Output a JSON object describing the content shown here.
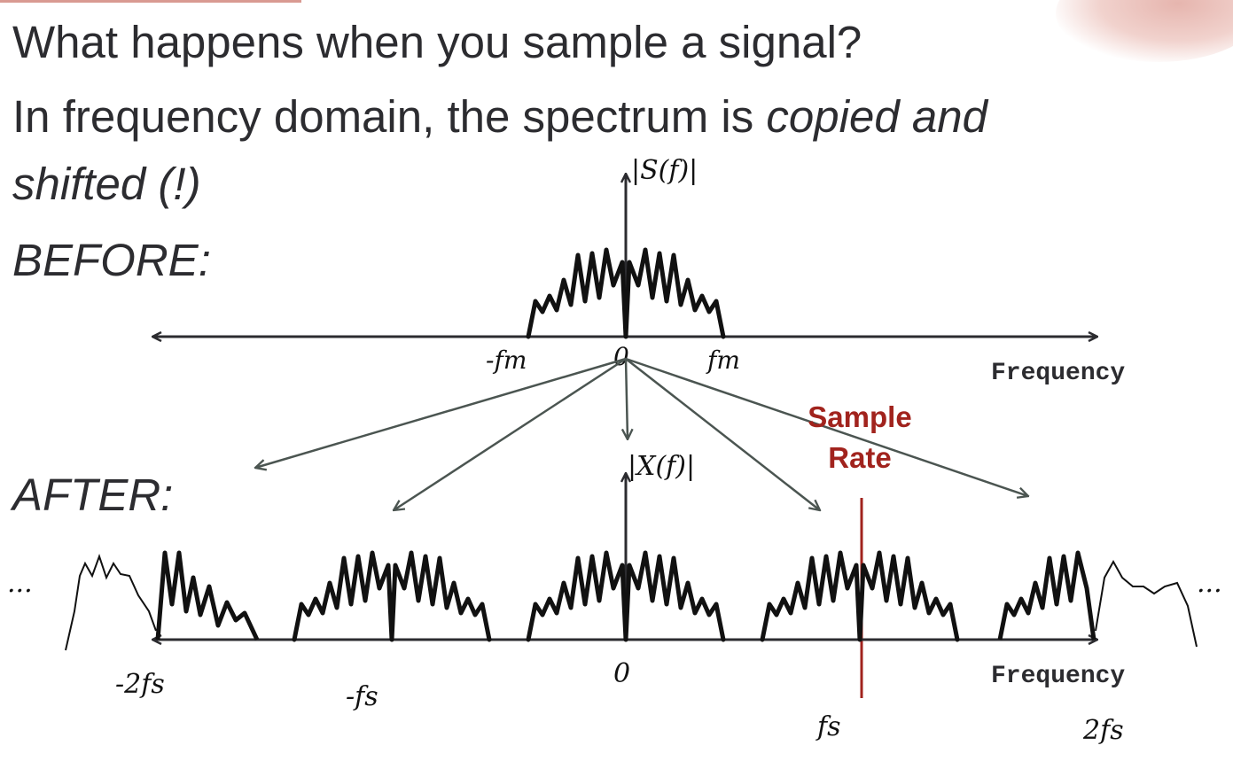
{
  "slide": {
    "title": "What happens when you sample a signal?",
    "line2_plain": "In frequency domain, the spectrum is ",
    "line2_emph": "copied and",
    "line3": "shifted (!)",
    "before_label": "BEFORE:",
    "after_label": "AFTER:"
  },
  "before_axis": {
    "spectrum_label": "|S(f)|",
    "axis_label": "Frequency",
    "ticks": [
      "-fm",
      "0",
      "fm"
    ]
  },
  "after_axis": {
    "spectrum_label": "|X(f)|",
    "axis_label": "Frequency",
    "ticks": [
      "-2fs",
      "-fs",
      "0",
      "fs",
      "2fs"
    ],
    "ellipsis_left": "...",
    "ellipsis_right": "..."
  },
  "annotation": {
    "sample_rate_line1": "Sample",
    "sample_rate_line2": "Rate",
    "color": "#a1231d"
  },
  "colors": {
    "axis": "#2c2c30",
    "arrows": "#4b5551",
    "text": "#2c2c30"
  }
}
